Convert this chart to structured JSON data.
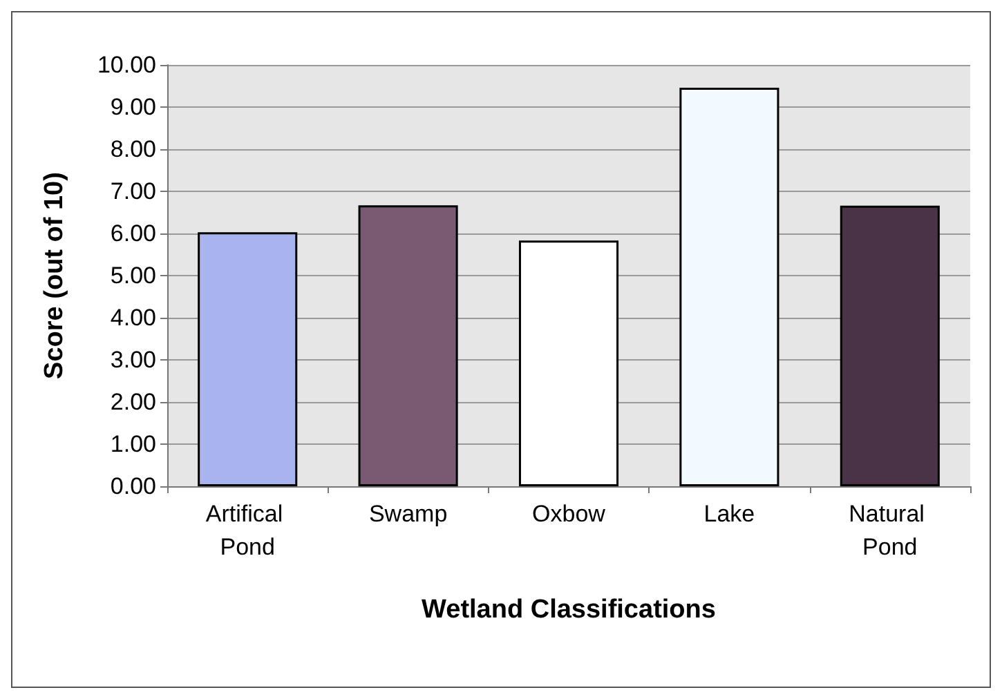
{
  "chart_data": {
    "type": "bar",
    "xlabel": "Wetland Classifications",
    "ylabel": "Score (out of 10)",
    "categories": [
      "Artifical Pond",
      "Swamp",
      "Oxbow",
      "Lake",
      "Natural Pond"
    ],
    "values": [
      6.03,
      6.67,
      5.83,
      9.46,
      6.66
    ],
    "colors": [
      "#a9b4ee",
      "#7a5a72",
      "#ffffff",
      "#f2fbff",
      "#4a3346"
    ],
    "ylim": [
      0,
      10
    ],
    "yticks": [
      {
        "value": 0,
        "label": "0.00"
      },
      {
        "value": 1,
        "label": "1.00"
      },
      {
        "value": 2,
        "label": "2.00"
      },
      {
        "value": 3,
        "label": "3.00"
      },
      {
        "value": 4,
        "label": "4.00"
      },
      {
        "value": 5,
        "label": "5.00"
      },
      {
        "value": 6,
        "label": "6.00"
      },
      {
        "value": 7,
        "label": "7.00"
      },
      {
        "value": 8,
        "label": "8.00"
      },
      {
        "value": 9,
        "label": "9.00"
      },
      {
        "value": 10,
        "label": "10.00"
      }
    ],
    "grid": "y"
  }
}
